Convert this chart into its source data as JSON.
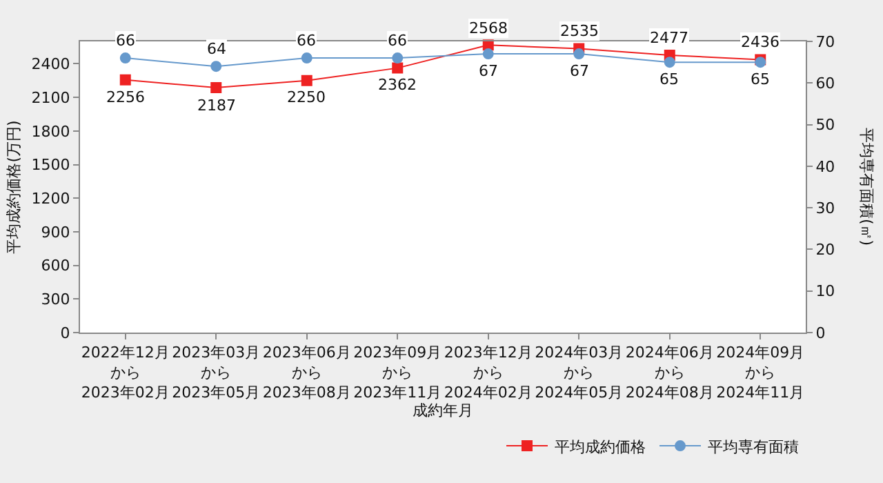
{
  "chart_data": {
    "type": "line",
    "xlabel": "成約年月",
    "ylabel": "平均成約価格(万円)",
    "y2label": "平均専有面積(㎡)",
    "categories": [
      "2022年12月から2023年02月",
      "2023年03月から2023年05月",
      "2023年06月から2023年08月",
      "2023年09月から2023年11月",
      "2023年12月から2024年02月",
      "2024年03月から2024年05月",
      "2024年06月から2024年08月",
      "2024年09月から2024年11月"
    ],
    "series": [
      {
        "name": "平均成約価格",
        "color": "#ee2222",
        "marker": "square",
        "values": [
          2256,
          2187,
          2250,
          2362,
          2568,
          2535,
          2477,
          2436
        ]
      },
      {
        "name": "平均専有面積",
        "color": "#6699cc",
        "marker": "circle",
        "axis": "y2",
        "values": [
          66,
          64,
          66,
          66,
          67,
          67,
          65,
          65
        ]
      }
    ],
    "ylim": [
      0,
      2600
    ],
    "yticks": [
      0,
      300,
      600,
      900,
      1200,
      1500,
      1800,
      2100,
      2400
    ],
    "y2lim": [
      0,
      70
    ],
    "y2ticks": [
      0,
      10,
      20,
      30,
      40,
      50,
      60,
      70
    ],
    "data_labels": true,
    "grid": false,
    "legend": "bottom right"
  }
}
